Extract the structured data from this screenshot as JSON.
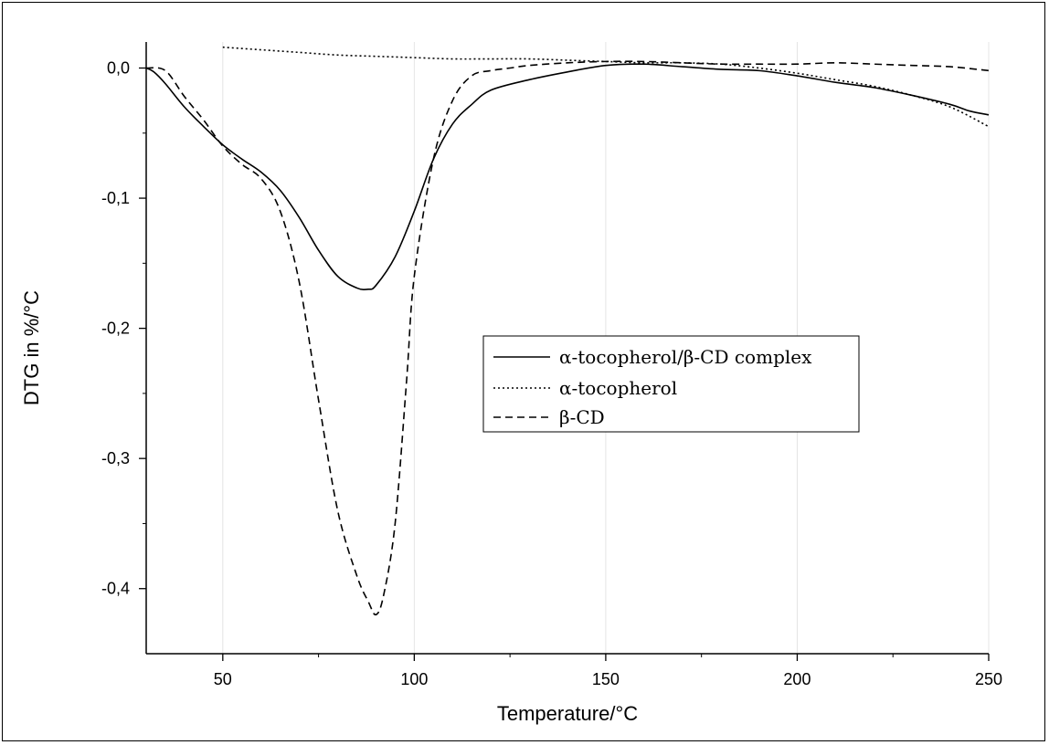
{
  "chart_data": {
    "type": "line",
    "xlabel": "Temperature/°C",
    "ylabel": "DTG in %/°C",
    "xlim": [
      30,
      250
    ],
    "ylim": [
      -0.45,
      0.02
    ],
    "x_ticks": [
      50,
      100,
      150,
      200,
      250
    ],
    "x_tick_labels": [
      "50",
      "100",
      "150",
      "200",
      "250"
    ],
    "y_ticks": [
      0.0,
      -0.1,
      -0.2,
      -0.3,
      -0.4
    ],
    "y_tick_labels": [
      "0,0",
      "-0,1",
      "-0,2",
      "-0,3",
      "-0,4"
    ],
    "grid": false,
    "legend_position": "center-right",
    "series": [
      {
        "name": "α-tocopherol/β-CD complex",
        "style": "solid",
        "x": [
          30,
          32,
          35,
          40,
          45,
          50,
          55,
          60,
          65,
          70,
          75,
          80,
          85,
          88,
          90,
          95,
          100,
          105,
          110,
          115,
          120,
          130,
          140,
          150,
          160,
          170,
          180,
          190,
          200,
          210,
          220,
          230,
          240,
          245,
          250
        ],
        "y": [
          0.0,
          -0.003,
          -0.012,
          -0.03,
          -0.045,
          -0.059,
          -0.07,
          -0.08,
          -0.094,
          -0.115,
          -0.14,
          -0.16,
          -0.169,
          -0.17,
          -0.167,
          -0.145,
          -0.11,
          -0.07,
          -0.043,
          -0.028,
          -0.017,
          -0.009,
          -0.003,
          0.002,
          0.003,
          0.001,
          -0.001,
          -0.002,
          -0.006,
          -0.011,
          -0.015,
          -0.021,
          -0.028,
          -0.033,
          -0.036
        ]
      },
      {
        "name": "α-tocopherol",
        "style": "dotted",
        "x": [
          50,
          60,
          70,
          80,
          90,
          100,
          110,
          120,
          130,
          140,
          150,
          160,
          170,
          180,
          190,
          200,
          210,
          220,
          230,
          240,
          250
        ],
        "y": [
          0.016,
          0.014,
          0.012,
          0.01,
          0.009,
          0.008,
          0.007,
          0.007,
          0.007,
          0.006,
          0.005,
          0.004,
          0.004,
          0.003,
          0.0,
          -0.004,
          -0.009,
          -0.014,
          -0.021,
          -0.03,
          -0.045
        ]
      },
      {
        "name": "β-CD",
        "style": "dashed",
        "x": [
          30,
          35,
          40,
          45,
          50,
          55,
          60,
          65,
          70,
          75,
          80,
          85,
          88,
          90,
          92,
          95,
          98,
          100,
          105,
          110,
          115,
          120,
          125,
          130,
          140,
          150,
          160,
          170,
          180,
          190,
          200,
          210,
          220,
          230,
          240,
          250
        ],
        "y": [
          0.0,
          -0.002,
          -0.022,
          -0.04,
          -0.06,
          -0.074,
          -0.085,
          -0.11,
          -0.165,
          -0.255,
          -0.34,
          -0.39,
          -0.41,
          -0.42,
          -0.405,
          -0.35,
          -0.24,
          -0.16,
          -0.07,
          -0.025,
          -0.006,
          -0.002,
          0.0,
          0.002,
          0.004,
          0.005,
          0.005,
          0.004,
          0.003,
          0.003,
          0.003,
          0.004,
          0.003,
          0.002,
          0.001,
          -0.002
        ]
      }
    ]
  }
}
